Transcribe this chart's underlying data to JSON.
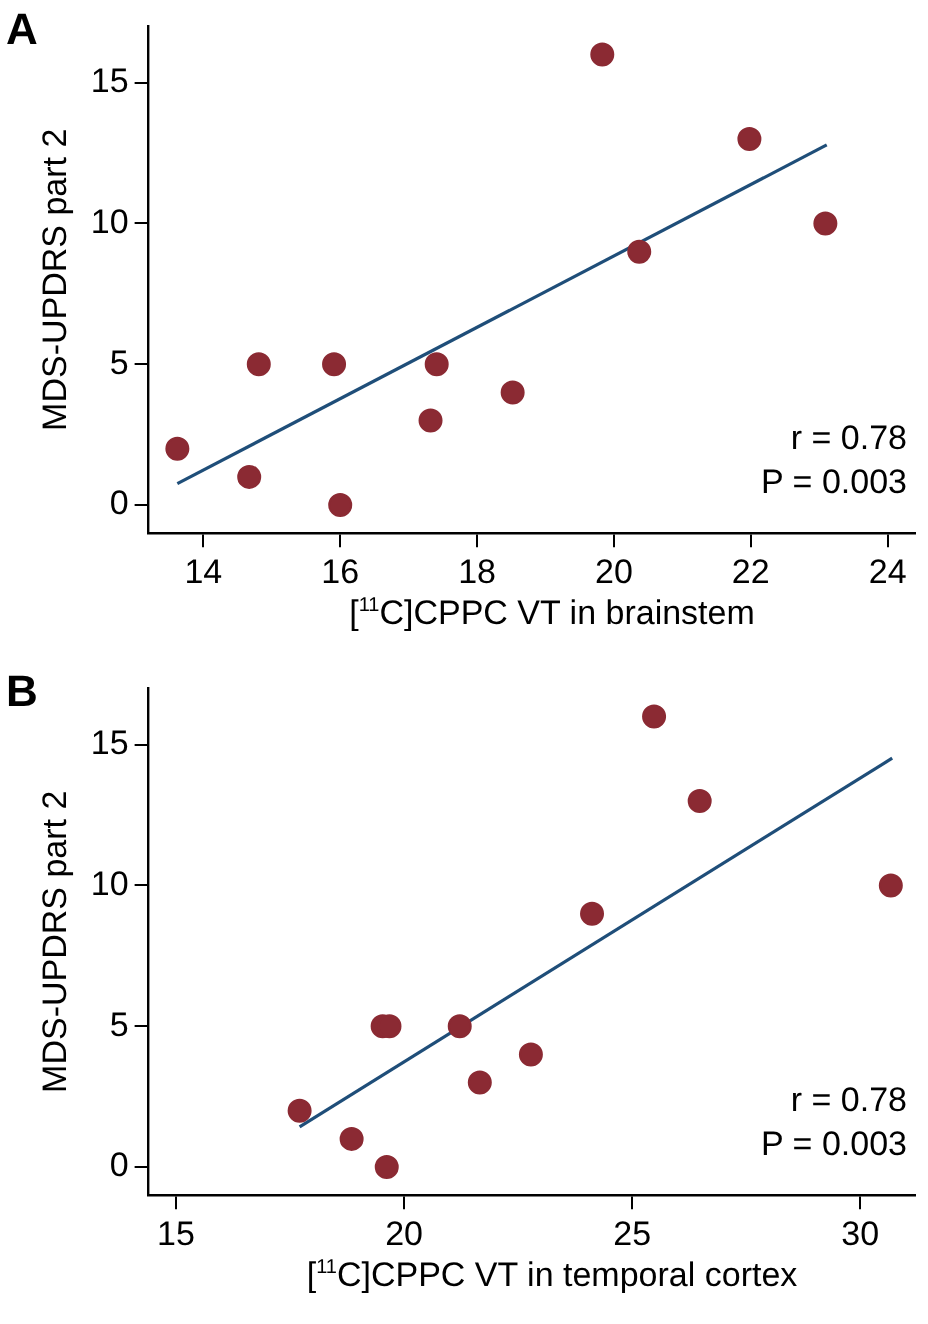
{
  "chart_data": [
    {
      "type": "scatter",
      "title": "A",
      "xlabel": "[$^{11}$C]CPPC VT in brainstem",
      "ylabel": "MDS-UPDRS part 2",
      "xlim": [
        13.2,
        24.4
      ],
      "xticks": [
        14,
        16,
        18,
        20,
        22,
        24
      ],
      "ylim": [
        -1,
        17
      ],
      "yticks": [
        0,
        5,
        10,
        15
      ],
      "grid": false,
      "legend": false,
      "annotations": [
        "r = 0.78",
        "P = 0.003"
      ],
      "series": [
        {
          "marker": "circle",
          "color": "#8b2a33",
          "x": [
            13.62,
            14.67,
            14.81,
            15.91,
            16.0,
            17.32,
            17.41,
            18.52,
            19.83,
            20.37,
            21.98,
            23.09
          ],
          "values": [
            2,
            1,
            5,
            5,
            0,
            3,
            5,
            4,
            16,
            9,
            13,
            10
          ]
        },
        {
          "type": "line",
          "marker": "none",
          "color": "#1f4e79",
          "x": [
            13.62,
            23.11
          ],
          "values": [
            0.76,
            12.79
          ]
        }
      ]
    },
    {
      "type": "scatter",
      "title": "B",
      "xlabel": "[$^{11}$C]CPPC VT in temporal cortex",
      "ylabel": "MDS-UPDRS part 2",
      "xlim": [
        14.4,
        31.2
      ],
      "xticks": [
        15,
        20,
        25,
        30
      ],
      "ylim": [
        -1,
        17
      ],
      "yticks": [
        0,
        5,
        10,
        15
      ],
      "grid": false,
      "legend": false,
      "annotations": [
        "r = 0.78",
        "P = 0.003"
      ],
      "series": [
        {
          "marker": "circle",
          "color": "#8b2a33",
          "x": [
            17.71,
            18.85,
            19.53,
            19.68,
            19.62,
            21.22,
            21.66,
            22.78,
            24.12,
            25.48,
            26.48,
            30.67
          ],
          "values": [
            2,
            1,
            5,
            5,
            0,
            5,
            3,
            4,
            9,
            16,
            13,
            10
          ]
        },
        {
          "type": "line",
          "marker": "none",
          "color": "#1f4e79",
          "x": [
            17.71,
            30.7
          ],
          "values": [
            1.43,
            14.52
          ]
        }
      ]
    }
  ]
}
